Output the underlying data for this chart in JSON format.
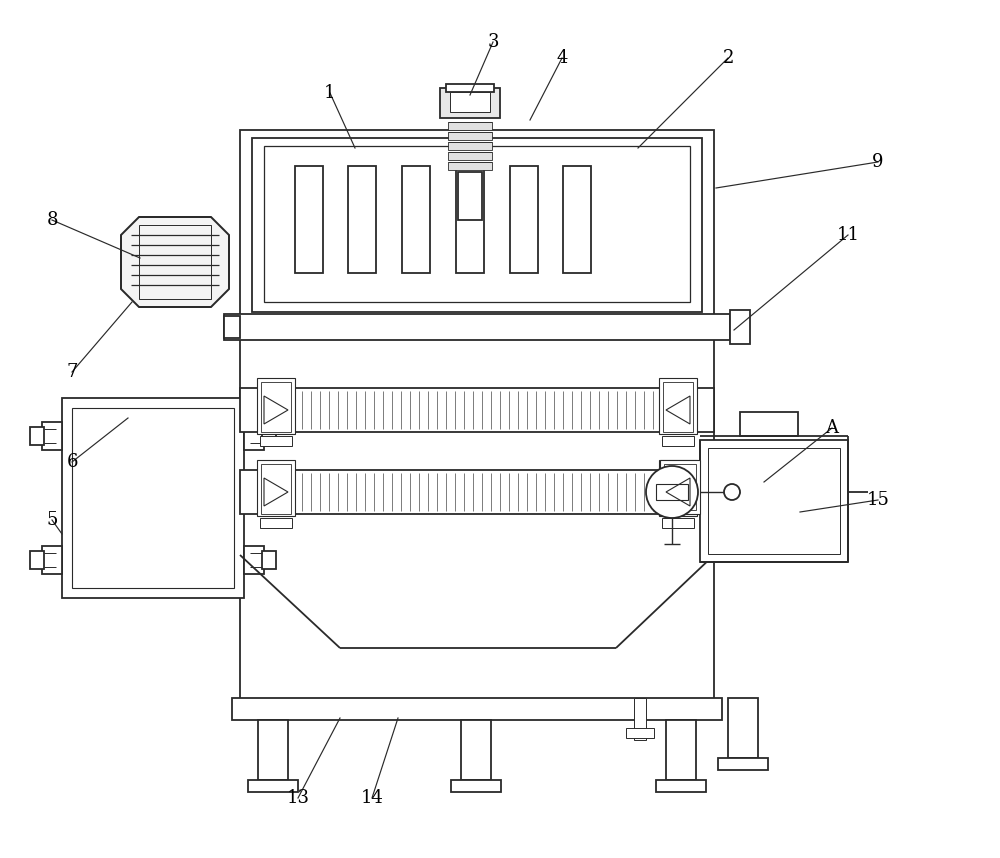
{
  "bg_color": "#ffffff",
  "lc": "#2a2a2a",
  "lw": 1.3,
  "figsize": [
    10.0,
    8.58
  ],
  "dpi": 100,
  "labels": [
    [
      "1",
      330,
      93
    ],
    [
      "2",
      728,
      58
    ],
    [
      "3",
      493,
      42
    ],
    [
      "4",
      562,
      58
    ],
    [
      "5",
      52,
      520
    ],
    [
      "6",
      72,
      462
    ],
    [
      "7",
      72,
      372
    ],
    [
      "8",
      52,
      220
    ],
    [
      "9",
      878,
      162
    ],
    [
      "11",
      848,
      235
    ],
    [
      "13",
      298,
      798
    ],
    [
      "14",
      372,
      798
    ],
    [
      "15",
      878,
      500
    ],
    [
      "A",
      832,
      428
    ]
  ],
  "leader_ends": [
    [
      "1",
      355,
      148
    ],
    [
      "2",
      638,
      148
    ],
    [
      "3",
      470,
      95
    ],
    [
      "4",
      530,
      120
    ],
    [
      "5",
      62,
      534
    ],
    [
      "6",
      128,
      418
    ],
    [
      "7",
      132,
      302
    ],
    [
      "8",
      140,
      258
    ],
    [
      "9",
      716,
      188
    ],
    [
      "11",
      734,
      330
    ],
    [
      "13",
      340,
      718
    ],
    [
      "14",
      398,
      718
    ],
    [
      "15",
      800,
      512
    ],
    [
      "A",
      764,
      482
    ]
  ]
}
